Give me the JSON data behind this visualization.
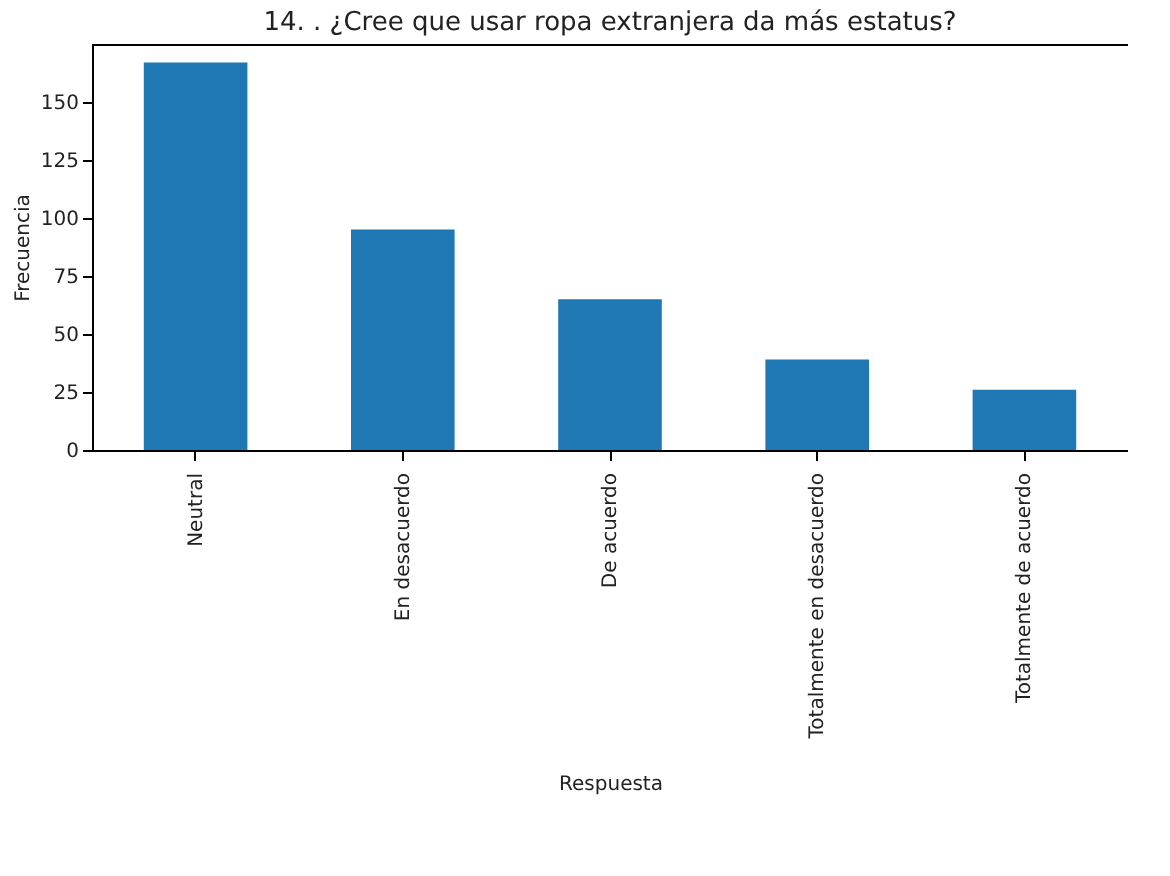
{
  "chart_data": {
    "type": "bar",
    "title": "14. . ¿Cree que usar ropa extranjera da más estatus?",
    "xlabel": "Respuesta",
    "ylabel": "Frecuencia",
    "categories": [
      "Neutral",
      "En desacuerdo",
      "De acuerdo",
      "Totalmente en desacuerdo",
      "Totalmente de acuerdo"
    ],
    "values": [
      167,
      95,
      65,
      39,
      26
    ],
    "color": "#1f77b4",
    "ylim": [
      0,
      175
    ],
    "yticks": [
      0,
      25,
      50,
      75,
      100,
      125,
      150
    ],
    "grid": false
  }
}
